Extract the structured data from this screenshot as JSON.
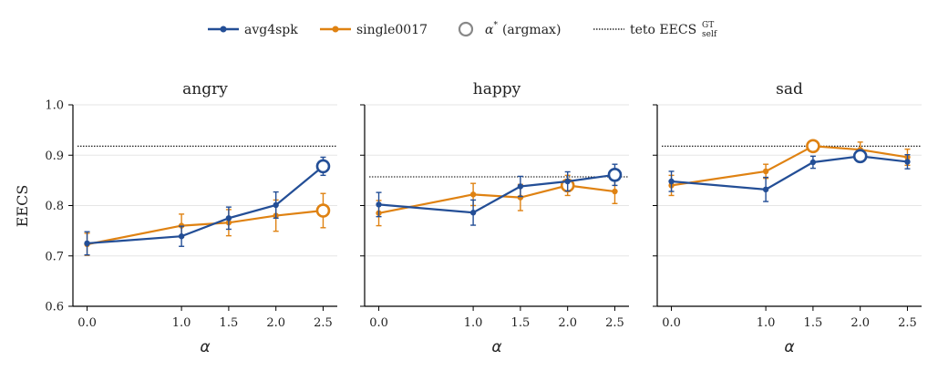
{
  "legend": {
    "series_1": "avg4spk",
    "series_2": "single0017",
    "argmax_label": "(argmax)",
    "argmax_alpha": "α",
    "argmax_star": "*",
    "ref_main": "teto EECS",
    "ref_sup": "GT",
    "ref_sub": "self"
  },
  "colors": {
    "avg4spk": "#234e96",
    "single0017": "#df8212",
    "reference": "#000000",
    "grid": "#e6e6e6"
  },
  "chart_data": {
    "type": "line",
    "ylabel": "EECS",
    "xlabel": "α",
    "ylim": [
      0.6,
      1.0
    ],
    "xlim": [
      -0.15,
      2.65
    ],
    "x": [
      0.0,
      1.0,
      1.5,
      2.0,
      2.5
    ],
    "x_tick_labels": [
      "0.0",
      "1.0",
      "1.5",
      "2.0",
      "2.5"
    ],
    "y_ticks": [
      0.6,
      0.7,
      0.8,
      0.9,
      1.0
    ],
    "y_tick_labels": [
      "0.6",
      "0.7",
      "0.8",
      "0.9",
      "1.0"
    ],
    "grid": "horizontal",
    "legend_position": "top-center",
    "panels": [
      {
        "title": "angry",
        "reference": 0.918,
        "series": [
          {
            "name": "avg4spk",
            "values": [
              0.725,
              0.739,
              0.775,
              0.801,
              0.878
            ],
            "err": [
              0.023,
              0.02,
              0.022,
              0.026,
              0.018
            ],
            "argmax_index": 4
          },
          {
            "name": "single0017",
            "values": [
              0.723,
              0.76,
              0.766,
              0.78,
              0.79
            ],
            "err": [
              0.022,
              0.023,
              0.026,
              0.031,
              0.034
            ],
            "argmax_index": 4
          }
        ]
      },
      {
        "title": "happy",
        "reference": 0.857,
        "series": [
          {
            "name": "avg4spk",
            "values": [
              0.802,
              0.786,
              0.838,
              0.848,
              0.861
            ],
            "err": [
              0.024,
              0.025,
              0.02,
              0.019,
              0.021
            ],
            "argmax_index": 4
          },
          {
            "name": "single0017",
            "values": [
              0.785,
              0.822,
              0.816,
              0.84,
              0.828
            ],
            "err": [
              0.025,
              0.022,
              0.026,
              0.02,
              0.024
            ],
            "argmax_index": 3
          }
        ]
      },
      {
        "title": "sad",
        "reference": 0.918,
        "series": [
          {
            "name": "avg4spk",
            "values": [
              0.848,
              0.832,
              0.886,
              0.898,
              0.887
            ],
            "err": [
              0.02,
              0.024,
              0.012,
              0.011,
              0.014
            ],
            "argmax_index": 3
          },
          {
            "name": "single0017",
            "values": [
              0.84,
              0.868,
              0.918,
              0.911,
              0.896
            ],
            "err": [
              0.02,
              0.014,
              0.01,
              0.015,
              0.016
            ],
            "argmax_index": 2
          }
        ]
      }
    ]
  }
}
